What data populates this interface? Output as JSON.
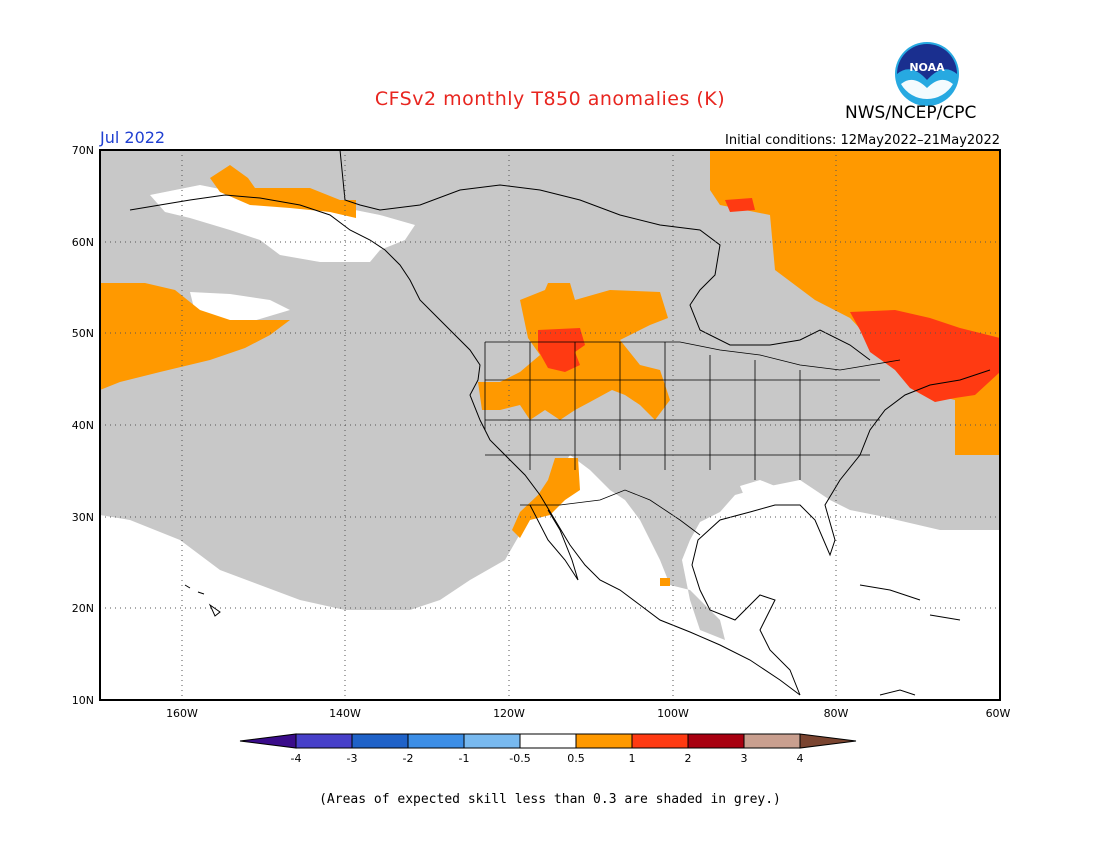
{
  "title": "CFSv2 monthly T850 anomalies (K)",
  "valid_month": "Jul 2022",
  "initial_conditions": "Initial conditions: 12May2022–21May2022",
  "agency": "NWS/NCEP/CPC",
  "logo_text": "NOAA",
  "footnote": "(Areas of expected skill less than 0.3 are shaded in grey.)",
  "colors": {
    "skill_grey": "#c8c8c8",
    "anom_0_5_1": "#ff9900",
    "anom_1_2": "#ff3a12",
    "anom_2_3": "#a80010",
    "anom_3_4": "#c99f8f",
    "anom_gt_4": "#7a4430"
  },
  "map": {
    "projection": "equirectangular",
    "lon_range": [
      -171,
      -60
    ],
    "lat_range": [
      10,
      70
    ],
    "lat_ticks": [
      {
        "value": 70,
        "label": "70N"
      },
      {
        "value": 60,
        "label": "60N"
      },
      {
        "value": 50,
        "label": "50N"
      },
      {
        "value": 40,
        "label": "40N"
      },
      {
        "value": 30,
        "label": "30N"
      },
      {
        "value": 20,
        "label": "20N"
      },
      {
        "value": 10,
        "label": "10N"
      }
    ],
    "lon_ticks": [
      {
        "value": -160,
        "label": "160W"
      },
      {
        "value": -140,
        "label": "140W"
      },
      {
        "value": -120,
        "label": "120W"
      },
      {
        "value": -100,
        "label": "100W"
      },
      {
        "value": -80,
        "label": "80W"
      },
      {
        "value": -60,
        "label": "60W"
      }
    ]
  },
  "colorbar": {
    "levels": [
      "-4",
      "-3",
      "-2",
      "-1",
      "-0.5",
      "0.5",
      "1",
      "2",
      "3",
      "4"
    ],
    "bins": [
      {
        "color": "#3a0c8a"
      },
      {
        "color": "#4740c9"
      },
      {
        "color": "#1f62c8"
      },
      {
        "color": "#3c8ee6"
      },
      {
        "color": "#78b9ef"
      },
      {
        "color": "#ffffff"
      },
      {
        "color": "#ff9900"
      },
      {
        "color": "#ff3a12"
      },
      {
        "color": "#a80010"
      },
      {
        "color": "#c99f8f"
      },
      {
        "color": "#7a4430"
      }
    ]
  }
}
